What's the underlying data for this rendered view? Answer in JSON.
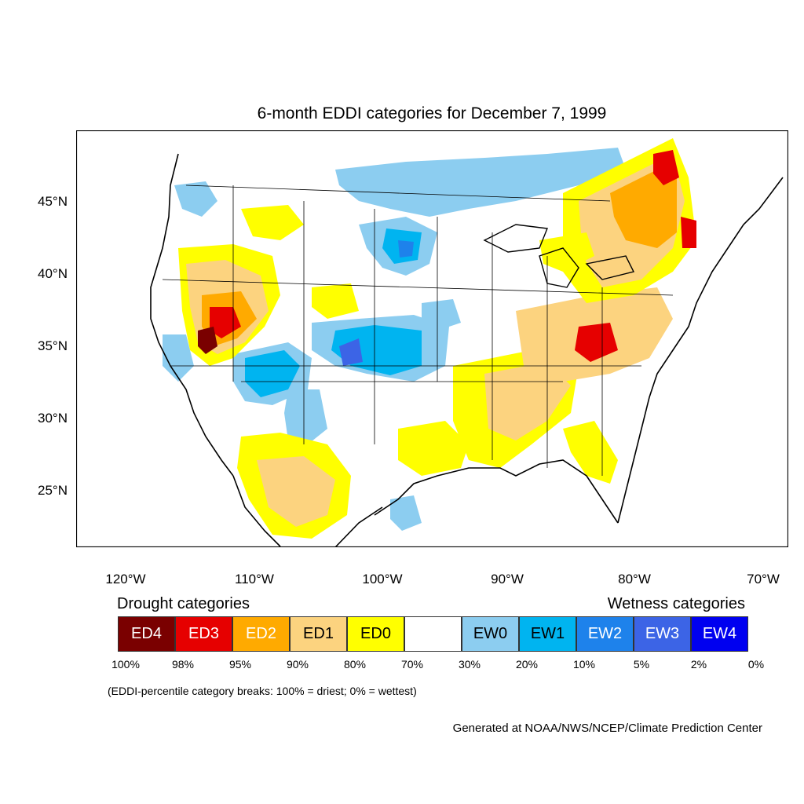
{
  "title": "6-month EDDI categories for December 7, 1999",
  "lat_ticks": [
    "45°N",
    "40°N",
    "35°N",
    "30°N",
    "25°N"
  ],
  "lon_ticks": [
    "120°W",
    "110°W",
    "100°W",
    "90°W",
    "80°W",
    "70°W"
  ],
  "legend": {
    "drought_heading": "Drought categories",
    "wetness_heading": "Wetness categories",
    "categories": [
      {
        "label": "ED4",
        "color": "#7a0000",
        "text_color": "#ffffff"
      },
      {
        "label": "ED3",
        "color": "#e60000",
        "text_color": "#ffffff"
      },
      {
        "label": "ED2",
        "color": "#ffaa00",
        "text_color": "#ffffff"
      },
      {
        "label": "ED1",
        "color": "#fcd37f",
        "text_color": "#000000"
      },
      {
        "label": "ED0",
        "color": "#ffff00",
        "text_color": "#000000"
      },
      {
        "label": "",
        "color": "#ffffff",
        "text_color": "#000000"
      },
      {
        "label": "EW0",
        "color": "#8ccdf0",
        "text_color": "#000000"
      },
      {
        "label": "EW1",
        "color": "#00b4f0",
        "text_color": "#000000"
      },
      {
        "label": "EW2",
        "color": "#1e82eb",
        "text_color": "#ffffff"
      },
      {
        "label": "EW3",
        "color": "#3c64e6",
        "text_color": "#ffffff"
      },
      {
        "label": "EW4",
        "color": "#0000f0",
        "text_color": "#ffffff"
      }
    ],
    "breaks": [
      "100%",
      "98%",
      "95%",
      "90%",
      "80%",
      "70%",
      "30%",
      "20%",
      "10%",
      "5%",
      "2%",
      "0%"
    ]
  },
  "note": "(EDDI-percentile category breaks: 100% = driest; 0% = wettest)",
  "credit": "Generated at NOAA/NWS/NCEP/Climate Prediction Center"
}
